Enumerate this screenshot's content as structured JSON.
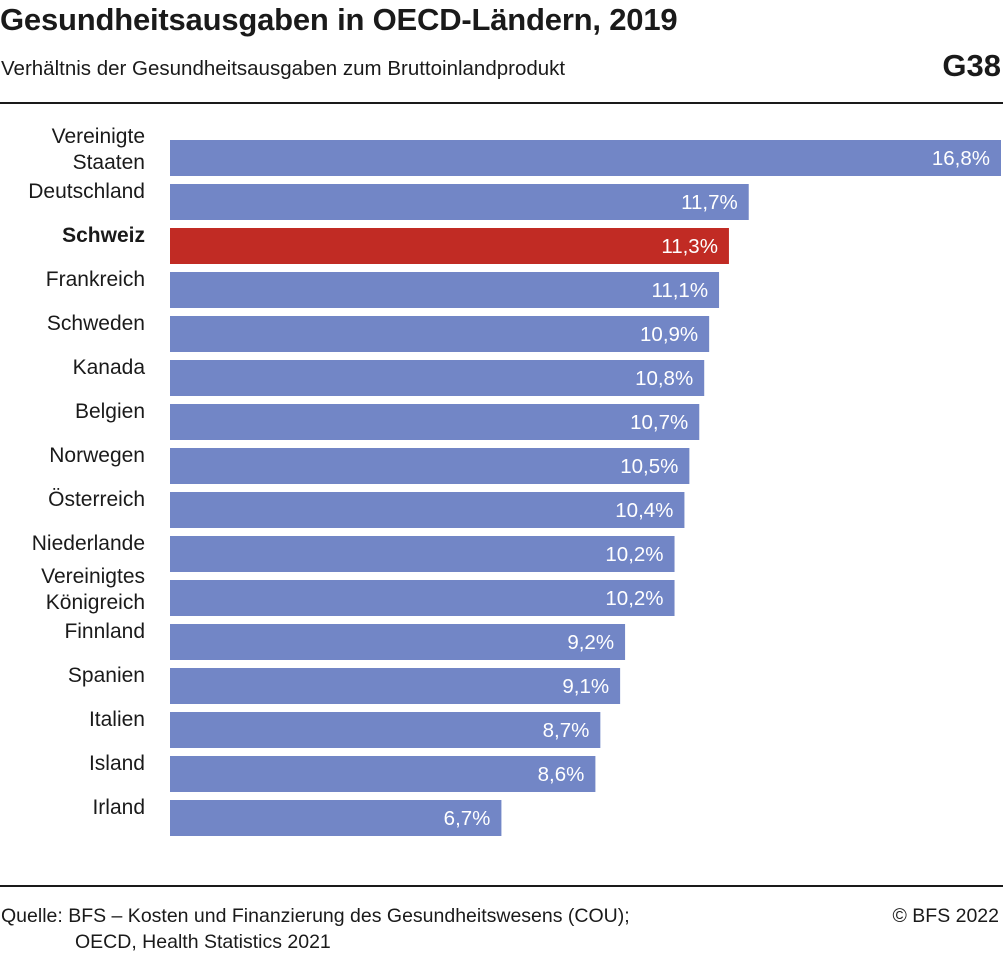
{
  "header": {
    "title": "Gesundheitsausgaben in OECD-Ländern, 2019",
    "subtitle": "Verhältnis der Gesundheitsausgaben zum Bruttoinlandprodukt",
    "figure_code": "G38"
  },
  "footer": {
    "source_line1": "Quelle: BFS – Kosten und Finanzierung des Gesundheitswesens (COU);",
    "source_line2": "OECD, Health Statistics 2021",
    "copyright": "© BFS 2022"
  },
  "colors": {
    "bar": "#7286c6",
    "highlight": "#c12b24",
    "bar_label": "#ffffff",
    "category_label": "#1a1a1a"
  },
  "chart_data": {
    "type": "bar",
    "orientation": "horizontal",
    "title": "Gesundheitsausgaben in OECD-Ländern, 2019",
    "subtitle": "Verhältnis der Gesundheitsausgaben zum Bruttoinlandprodukt",
    "xlabel": "",
    "ylabel": "",
    "xlim": [
      0,
      16.8
    ],
    "grid": false,
    "legend": "none",
    "highlight_category": "Schweiz",
    "categories": [
      [
        "Vereinigte",
        "Staaten"
      ],
      [
        "Deutschland"
      ],
      [
        "Schweiz"
      ],
      [
        "Frankreich"
      ],
      [
        "Schweden"
      ],
      [
        "Kanada"
      ],
      [
        "Belgien"
      ],
      [
        "Norwegen"
      ],
      [
        "Österreich"
      ],
      [
        "Niederlande"
      ],
      [
        "Vereinigtes",
        "Königreich"
      ],
      [
        "Finnland"
      ],
      [
        "Spanien"
      ],
      [
        "Italien"
      ],
      [
        "Island"
      ],
      [
        "Irland"
      ]
    ],
    "values": [
      16.8,
      11.7,
      11.3,
      11.1,
      10.9,
      10.8,
      10.7,
      10.5,
      10.4,
      10.2,
      10.2,
      9.2,
      9.1,
      8.7,
      8.6,
      6.7
    ],
    "data_labels": [
      "16,8%",
      "11,7%",
      "11,3%",
      "11,1%",
      "10,9%",
      "10,8%",
      "10,7%",
      "10,5%",
      "10,4%",
      "10,2%",
      "10,2%",
      "9,2%",
      "9,1%",
      "8,7%",
      "8,6%",
      "6,7%"
    ]
  }
}
